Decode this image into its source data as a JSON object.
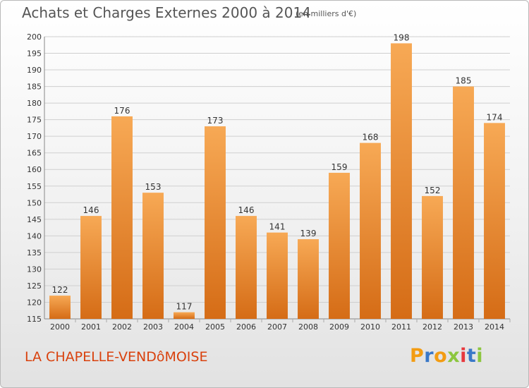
{
  "header": {
    "title": "Achats et Charges Externes 2000 à 2014",
    "unit": "(en milliers d'€)"
  },
  "footer": {
    "place": "LA CHAPELLE-VENDôMOISE",
    "logo_text": "Proxiti",
    "logo_colors": [
      "#f39c12",
      "#3a78c8",
      "#f39c12",
      "#8cc63f",
      "#e8383d",
      "#3a78c8",
      "#8cc63f"
    ]
  },
  "colors": {
    "bar_light": "#f7a955",
    "bar_dark": "#d56c16",
    "grid": "#cfcfcf",
    "text": "#333333"
  },
  "chart_data": {
    "type": "bar",
    "title": "Achats et Charges Externes 2000 à 2014",
    "subtitle": "(en milliers d'€)",
    "xlabel": "",
    "ylabel": "",
    "categories": [
      "2000",
      "2001",
      "2002",
      "2003",
      "2004",
      "2005",
      "2006",
      "2007",
      "2008",
      "2009",
      "2010",
      "2011",
      "2012",
      "2013",
      "2014"
    ],
    "values": [
      122,
      146,
      176,
      153,
      117,
      173,
      146,
      141,
      139,
      159,
      168,
      198,
      152,
      185,
      174
    ],
    "ylim": [
      115,
      200
    ],
    "yticks": [
      115,
      120,
      125,
      130,
      135,
      140,
      145,
      150,
      155,
      160,
      165,
      170,
      175,
      180,
      185,
      190,
      195,
      200
    ],
    "grid": true,
    "data_labels": true
  }
}
